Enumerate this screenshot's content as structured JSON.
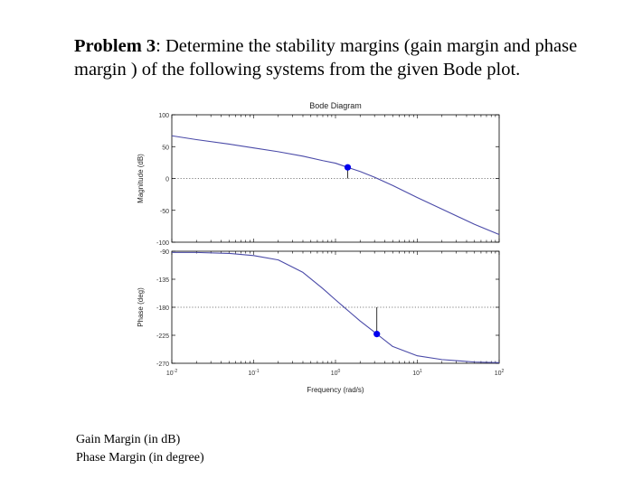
{
  "problem": {
    "label": "Problem 3",
    "text": ": Determine the stability margins (gain margin and phase margin ) of the following systems from the given Bode plot."
  },
  "answers": {
    "gain_margin_label": "Gain Margin (in dB)",
    "phase_margin_label": "Phase Margin (in degree)"
  },
  "chart_data": {
    "type": "line",
    "title": "Bode Diagram",
    "xlabel": "Frequency (rad/s)",
    "x_scale": "log",
    "xlim": [
      0.01,
      100
    ],
    "x_ticks": [
      {
        "base": "10",
        "exp": "-2"
      },
      {
        "base": "10",
        "exp": "-1"
      },
      {
        "base": "10",
        "exp": "0"
      },
      {
        "base": "10",
        "exp": "1"
      },
      {
        "base": "10",
        "exp": "2"
      }
    ],
    "line_color": "#4a4aa8",
    "marker_color": "#0000ee",
    "grid": "dotted reference lines at 0 dB and -180 deg",
    "magnitude": {
      "ylabel": "Magnitude (dB)",
      "ylim": [
        -100,
        100
      ],
      "yticks": [
        100,
        50,
        0,
        -50,
        -100
      ],
      "reference": 0,
      "x": [
        0.01,
        0.02,
        0.05,
        0.1,
        0.2,
        0.4,
        0.7,
        1,
        1.4,
        2,
        3,
        5,
        10,
        20,
        50,
        100
      ],
      "y": [
        67,
        61,
        54,
        48,
        42,
        35,
        28,
        24,
        17.5,
        11,
        2,
        -11,
        -30,
        -48,
        -72,
        -88
      ],
      "marker": {
        "x": 1.41,
        "y": 17.5
      }
    },
    "phase": {
      "ylabel": "Phase (deg)",
      "ylim": [
        -270,
        -90
      ],
      "yticks": [
        -90,
        -135,
        -180,
        -225,
        -270
      ],
      "reference": -180,
      "x": [
        0.01,
        0.02,
        0.05,
        0.1,
        0.2,
        0.4,
        0.7,
        1,
        1.5,
        2,
        3,
        3.2,
        5,
        10,
        20,
        50,
        100
      ],
      "y": [
        -92,
        -92,
        -93.5,
        -97,
        -104,
        -124,
        -150,
        -168,
        -188,
        -202,
        -220,
        -223,
        -243,
        -258,
        -264,
        -268,
        -269
      ],
      "marker": {
        "x": 3.2,
        "y": -223
      }
    }
  }
}
